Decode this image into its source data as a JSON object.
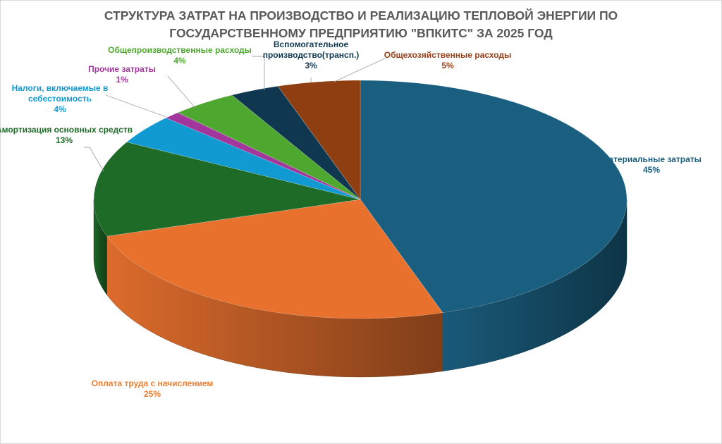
{
  "chart_data": {
    "type": "pie",
    "title_lines": [
      "СТРУКТУРА ЗАТРАТ НА ПРОИЗВОДСТВО И РЕАЛИЗАЦИЮ ТЕПЛОВОЙ ЭНЕРГИИ ПО",
      "ГОСУДАРСТВЕННОМУ ПРЕДПРИЯТИЮ \"ВПКИТС\" ЗА 2025 ГОД"
    ],
    "three_d": true,
    "data_labels": "category-and-percent",
    "slices": [
      {
        "label": "Материальные затраты",
        "label_lines": [
          "Материальные затраты"
        ],
        "value": 45,
        "pct_label": "45%",
        "color": "#1a5f7f",
        "label_color": "#1a5f7f"
      },
      {
        "label": "Оплата труда с начислением",
        "label_lines": [
          "Оплата труда с начислением"
        ],
        "value": 25,
        "pct_label": "25%",
        "color": "#e8712e",
        "label_color": "#ed7d31"
      },
      {
        "label": "Амортизация основных средств",
        "label_lines": [
          "Амортизация основных средств"
        ],
        "value": 13,
        "pct_label": "13%",
        "color": "#1e6b28",
        "label_color": "#1e6b28"
      },
      {
        "label": "Налоги, включаемые в себестоимость",
        "label_lines": [
          "Налоги, включаемые в",
          "себестоимость"
        ],
        "value": 4,
        "pct_label": "4%",
        "color": "#1199d2",
        "label_color": "#1199d2"
      },
      {
        "label": "Прочие затраты",
        "label_lines": [
          "Прочие затраты"
        ],
        "value": 1,
        "pct_label": "1%",
        "color": "#a3369c",
        "label_color": "#a3369c"
      },
      {
        "label": "Общепроизводственные расходы",
        "label_lines": [
          "Общепроизводственные расходы"
        ],
        "value": 4,
        "pct_label": "4%",
        "color": "#4ea72e",
        "label_color": "#4ea72e"
      },
      {
        "label": "Вспомогательное производство(трансп.)",
        "label_lines": [
          "Вспомогательное",
          "производство(трансп.)"
        ],
        "value": 3,
        "pct_label": "3%",
        "color": "#0f3850",
        "label_color": "#0f3850"
      },
      {
        "label": "Общехозяйственные расходы",
        "label_lines": [
          "Общехозяйственные расходы"
        ],
        "value": 5,
        "pct_label": "5%",
        "color": "#8f3e12",
        "label_color": "#974119"
      }
    ]
  }
}
